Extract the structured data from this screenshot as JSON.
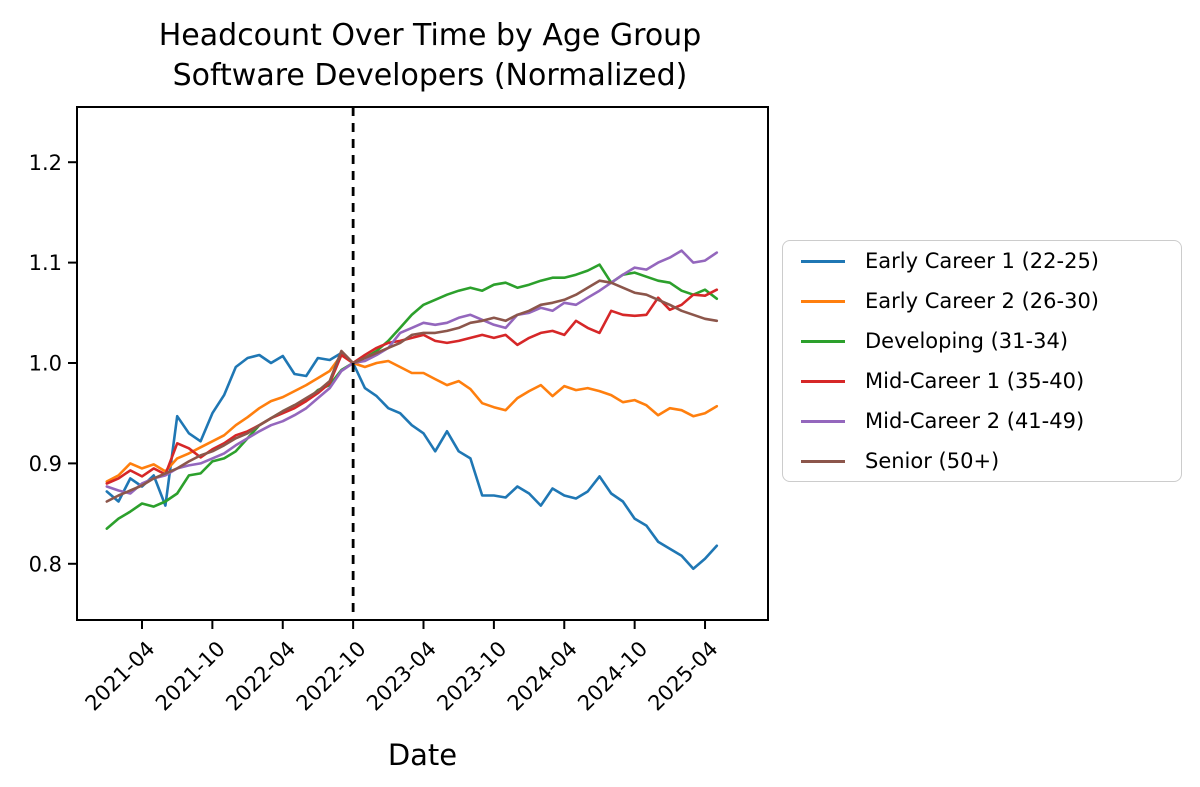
{
  "figure": {
    "title_line1": "Headcount Over Time by Age Group",
    "title_line2": "Software Developers (Normalized)"
  },
  "chart_data": {
    "type": "line",
    "title": "Headcount Over Time by Age Group Software Developers (Normalized)",
    "xlabel": "Date",
    "ylabel": "",
    "ylim": [
      0.744,
      1.255
    ],
    "yticks": [
      0.8,
      0.9,
      1.0,
      1.1,
      1.2
    ],
    "xticks": [
      "2021-04",
      "2021-10",
      "2022-04",
      "2022-10",
      "2023-04",
      "2023-10",
      "2024-04",
      "2024-10",
      "2025-04"
    ],
    "grid": false,
    "legend_position": "right",
    "vline": {
      "x": "2022-10",
      "style": "dashed",
      "color": "#000000"
    },
    "x": [
      "2021-01",
      "2021-02",
      "2021-03",
      "2021-04",
      "2021-05",
      "2021-06",
      "2021-07",
      "2021-08",
      "2021-09",
      "2021-10",
      "2021-11",
      "2021-12",
      "2022-01",
      "2022-02",
      "2022-03",
      "2022-04",
      "2022-05",
      "2022-06",
      "2022-07",
      "2022-08",
      "2022-09",
      "2022-10",
      "2022-11",
      "2022-12",
      "2023-01",
      "2023-02",
      "2023-03",
      "2023-04",
      "2023-05",
      "2023-06",
      "2023-07",
      "2023-08",
      "2023-09",
      "2023-10",
      "2023-11",
      "2023-12",
      "2024-01",
      "2024-02",
      "2024-03",
      "2024-04",
      "2024-05",
      "2024-06",
      "2024-07",
      "2024-08",
      "2024-09",
      "2024-10",
      "2024-11",
      "2024-12",
      "2025-01",
      "2025-02",
      "2025-03",
      "2025-04",
      "2025-05"
    ],
    "series": [
      {
        "name": "Early Career 1 (22-25)",
        "color": "#1f77b4",
        "values": [
          0.872,
          0.862,
          0.885,
          0.877,
          0.888,
          0.858,
          0.947,
          0.93,
          0.922,
          0.95,
          0.968,
          0.996,
          1.005,
          1.008,
          1.0,
          1.007,
          0.989,
          0.987,
          1.005,
          1.003,
          1.01,
          1.0,
          0.975,
          0.967,
          0.955,
          0.95,
          0.938,
          0.93,
          0.912,
          0.932,
          0.912,
          0.905,
          0.868,
          0.868,
          0.866,
          0.877,
          0.87,
          0.858,
          0.875,
          0.868,
          0.865,
          0.872,
          0.887,
          0.87,
          0.862,
          0.845,
          0.838,
          0.822,
          0.815,
          0.808,
          0.795,
          0.805,
          0.818
        ]
      },
      {
        "name": "Early Career 2 (26-30)",
        "color": "#ff7f0e",
        "values": [
          0.882,
          0.888,
          0.9,
          0.895,
          0.899,
          0.892,
          0.905,
          0.91,
          0.916,
          0.922,
          0.928,
          0.938,
          0.946,
          0.955,
          0.962,
          0.966,
          0.972,
          0.978,
          0.985,
          0.992,
          1.008,
          1.0,
          0.996,
          1.0,
          1.002,
          0.996,
          0.99,
          0.99,
          0.984,
          0.978,
          0.982,
          0.974,
          0.96,
          0.956,
          0.953,
          0.965,
          0.972,
          0.978,
          0.967,
          0.977,
          0.973,
          0.975,
          0.972,
          0.968,
          0.961,
          0.963,
          0.958,
          0.948,
          0.955,
          0.953,
          0.947,
          0.95,
          0.957
        ]
      },
      {
        "name": "Developing (31-34)",
        "color": "#2ca02c",
        "values": [
          0.835,
          0.845,
          0.852,
          0.86,
          0.857,
          0.862,
          0.87,
          0.888,
          0.89,
          0.902,
          0.905,
          0.912,
          0.925,
          0.938,
          0.945,
          0.952,
          0.958,
          0.962,
          0.973,
          0.978,
          0.993,
          1.0,
          1.005,
          1.012,
          1.022,
          1.035,
          1.048,
          1.058,
          1.063,
          1.068,
          1.072,
          1.075,
          1.072,
          1.078,
          1.08,
          1.075,
          1.078,
          1.082,
          1.085,
          1.085,
          1.088,
          1.092,
          1.098,
          1.08,
          1.088,
          1.09,
          1.086,
          1.082,
          1.08,
          1.072,
          1.068,
          1.073,
          1.064
        ]
      },
      {
        "name": "Mid-Career 1 (35-40)",
        "color": "#d62728",
        "values": [
          0.88,
          0.885,
          0.893,
          0.887,
          0.895,
          0.889,
          0.92,
          0.915,
          0.906,
          0.914,
          0.92,
          0.928,
          0.932,
          0.938,
          0.945,
          0.95,
          0.955,
          0.962,
          0.97,
          0.98,
          1.008,
          1.0,
          1.008,
          1.015,
          1.02,
          1.022,
          1.025,
          1.028,
          1.022,
          1.02,
          1.022,
          1.025,
          1.028,
          1.025,
          1.028,
          1.018,
          1.025,
          1.03,
          1.032,
          1.028,
          1.042,
          1.035,
          1.03,
          1.052,
          1.048,
          1.047,
          1.048,
          1.065,
          1.053,
          1.058,
          1.068,
          1.067,
          1.073
        ]
      },
      {
        "name": "Mid-Career 2 (41-49)",
        "color": "#9467bd",
        "values": [
          0.877,
          0.873,
          0.87,
          0.88,
          0.885,
          0.888,
          0.895,
          0.898,
          0.9,
          0.905,
          0.91,
          0.918,
          0.925,
          0.932,
          0.938,
          0.942,
          0.948,
          0.955,
          0.965,
          0.975,
          0.992,
          1.0,
          1.002,
          1.008,
          1.015,
          1.03,
          1.035,
          1.04,
          1.038,
          1.04,
          1.045,
          1.048,
          1.043,
          1.038,
          1.035,
          1.048,
          1.05,
          1.055,
          1.052,
          1.06,
          1.058,
          1.065,
          1.072,
          1.08,
          1.088,
          1.095,
          1.093,
          1.1,
          1.105,
          1.112,
          1.1,
          1.102,
          1.11
        ]
      },
      {
        "name": "Senior (50+)",
        "color": "#8c564b",
        "values": [
          0.862,
          0.868,
          0.873,
          0.878,
          0.885,
          0.89,
          0.895,
          0.902,
          0.908,
          0.912,
          0.918,
          0.925,
          0.93,
          0.938,
          0.945,
          0.952,
          0.958,
          0.965,
          0.972,
          0.982,
          1.012,
          1.0,
          1.005,
          1.01,
          1.015,
          1.02,
          1.028,
          1.03,
          1.03,
          1.032,
          1.035,
          1.04,
          1.042,
          1.045,
          1.042,
          1.048,
          1.052,
          1.058,
          1.06,
          1.063,
          1.068,
          1.075,
          1.082,
          1.08,
          1.075,
          1.07,
          1.068,
          1.063,
          1.058,
          1.052,
          1.048,
          1.044,
          1.042
        ]
      }
    ]
  }
}
